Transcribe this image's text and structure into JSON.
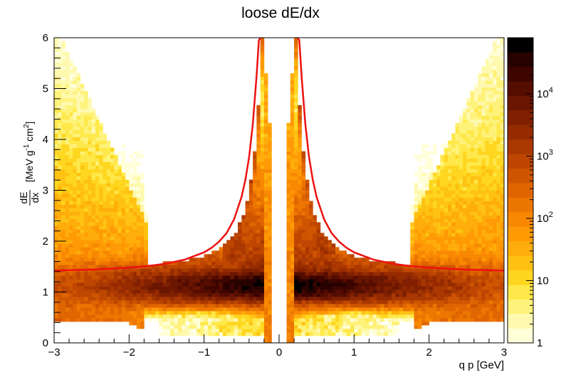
{
  "chart_data": {
    "type": "heatmap",
    "title": "loose dE/dx",
    "xlabel": "q p  [GeV]",
    "ylabel": {
      "fraction_numerator": "dE",
      "fraction_denominator": "dx",
      "units_open": "[MeV g",
      "units_sup1": "-1",
      "units_mid": " cm",
      "units_sup2": "2",
      "units_close": "]"
    },
    "xlim": [
      -3,
      3
    ],
    "ylim": [
      0,
      6
    ],
    "x_ticks": [
      -3,
      -2,
      -1,
      0,
      1,
      2,
      3
    ],
    "x_tick_labels": [
      "−3",
      "−2",
      "−1",
      "0",
      "1",
      "2",
      "3"
    ],
    "y_ticks": [
      0,
      1,
      2,
      3,
      4,
      5,
      6
    ],
    "y_tick_labels": [
      "0",
      "1",
      "2",
      "3",
      "4",
      "5",
      "6"
    ],
    "z_scale": "log",
    "zlim": [
      1,
      80000
    ],
    "z_ticks": [
      {
        "value": 1,
        "base": "1",
        "exp": ""
      },
      {
        "value": 10,
        "base": "10",
        "exp": ""
      },
      {
        "value": 100,
        "base": "10",
        "exp": "2"
      },
      {
        "value": 1000,
        "base": "10",
        "exp": "3"
      },
      {
        "value": 10000,
        "base": "10",
        "exp": "4"
      }
    ],
    "palette": [
      "#ffffd9",
      "#fff9b0",
      "#fff27a",
      "#ffe84a",
      "#ffd61f",
      "#ffc212",
      "#ffad0a",
      "#ff9a05",
      "#f88802",
      "#ed7600",
      "#e06500",
      "#cf5500",
      "#be4600",
      "#aa3800",
      "#962b00",
      "#812000",
      "#6b1600",
      "#550d00",
      "#3e0500",
      "#270200",
      "#000000"
    ],
    "curve_color": "#ee1111",
    "curve_description_points": {
      "x": [
        -3.0,
        -2.5,
        -2.0,
        -1.75,
        -1.5,
        -1.25,
        -1.0,
        -0.9,
        -0.8,
        -0.7,
        -0.6,
        -0.5,
        -0.45,
        -0.4,
        -0.35,
        -0.3,
        -0.27,
        -0.25
      ],
      "y": [
        1.42,
        1.44,
        1.48,
        1.51,
        1.56,
        1.64,
        1.78,
        1.87,
        1.99,
        2.16,
        2.43,
        2.87,
        3.2,
        3.65,
        4.3,
        5.25,
        5.95,
        6.0
      ]
    }
  }
}
